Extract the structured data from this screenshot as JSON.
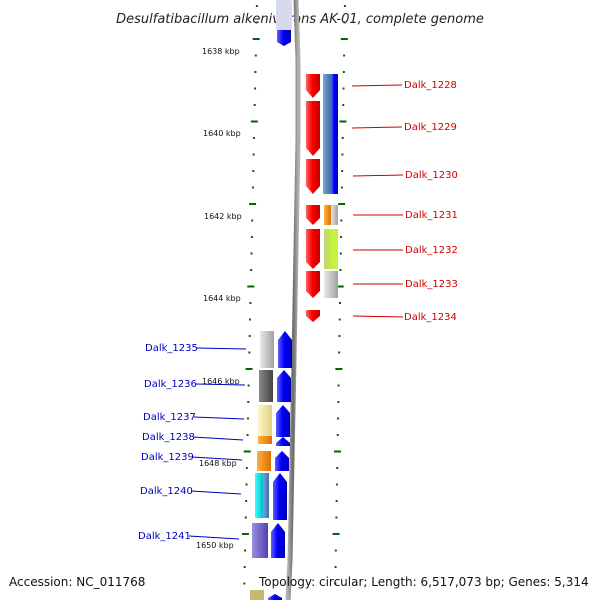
{
  "title": "Desulfatibacillum alkenivorans AK-01, complete genome",
  "kbp_labels": [
    "1638 kbp",
    "1640 kbp",
    "1642 kbp",
    "1644 kbp",
    "1646 kbp",
    "1648 kbp",
    "1650 kbp"
  ],
  "right_genes": [
    "Dalk_1228",
    "Dalk_1229",
    "Dalk_1230",
    "Dalk_1231",
    "Dalk_1232",
    "Dalk_1233",
    "Dalk_1234"
  ],
  "left_genes": [
    "Dalk_1235",
    "Dalk_1236",
    "Dalk_1237",
    "Dalk_1238",
    "Dalk_1239",
    "Dalk_1240",
    "Dalk_1241"
  ],
  "footer": {
    "accession": "Accession: NC_011768",
    "summary": "Topology: circular; Length: 6,517,073 bp; Genes: 5,314"
  },
  "colors": {
    "right_label": "#d00000",
    "left_label": "#0000c0",
    "forward_strand": "#0000e0",
    "reverse_strand": "#ee0000",
    "backbone": "#808080",
    "tick": "#006600"
  }
}
